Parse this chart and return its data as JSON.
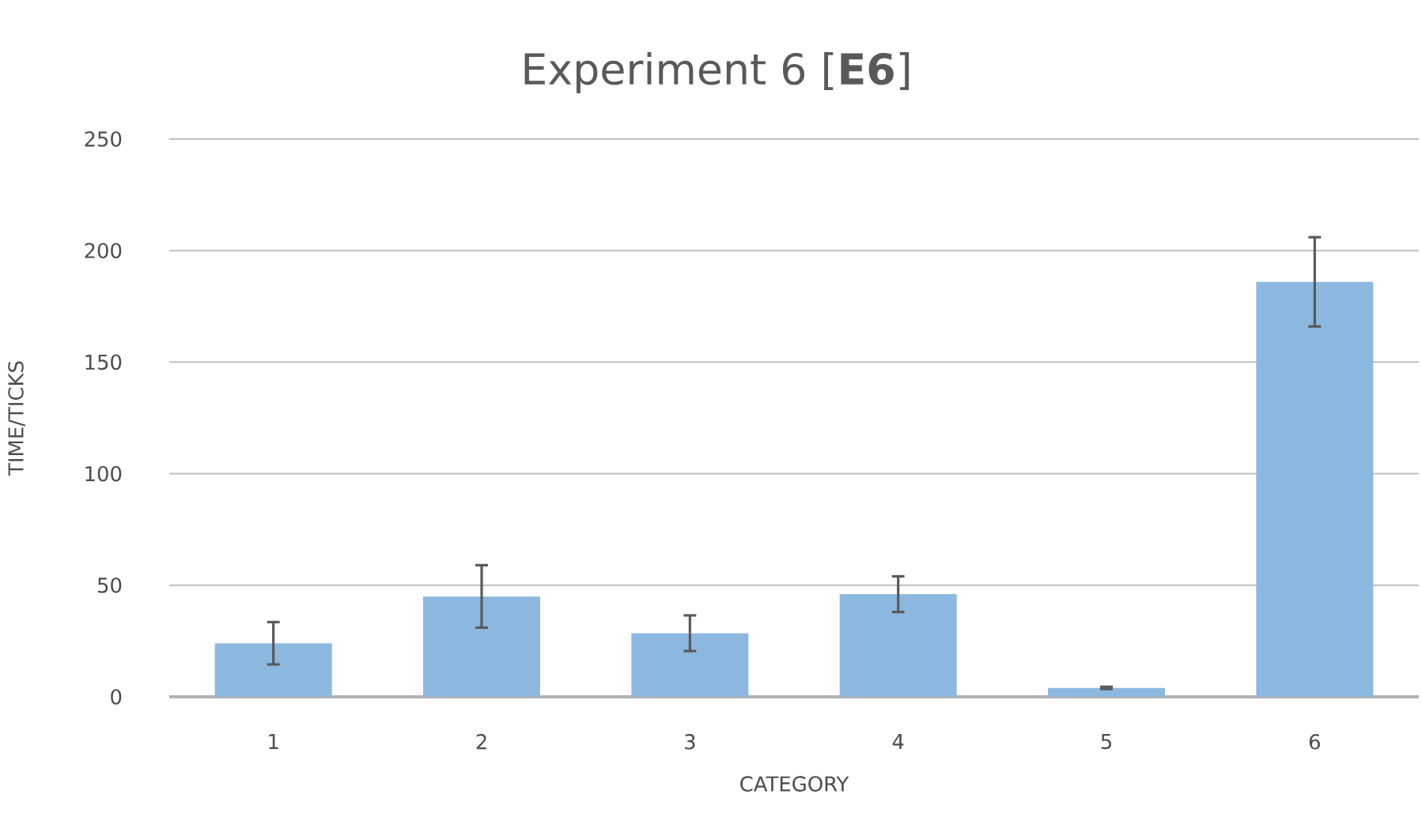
{
  "chart_data": {
    "type": "bar",
    "title": "Experiment 6 [**E6**]",
    "xlabel": "CATEGORY",
    "ylabel": "TIME/TICKS",
    "categories": [
      "1",
      "2",
      "3",
      "4",
      "5",
      "6"
    ],
    "values": [
      24,
      45,
      28.5,
      46,
      4,
      186
    ],
    "errors": [
      9.5,
      14,
      8,
      8,
      0.5,
      20
    ],
    "color": "#8cb8e0",
    "ylim": [
      0,
      250
    ],
    "yticks": [
      0,
      50,
      100,
      150,
      200,
      250
    ],
    "grid": "y"
  }
}
